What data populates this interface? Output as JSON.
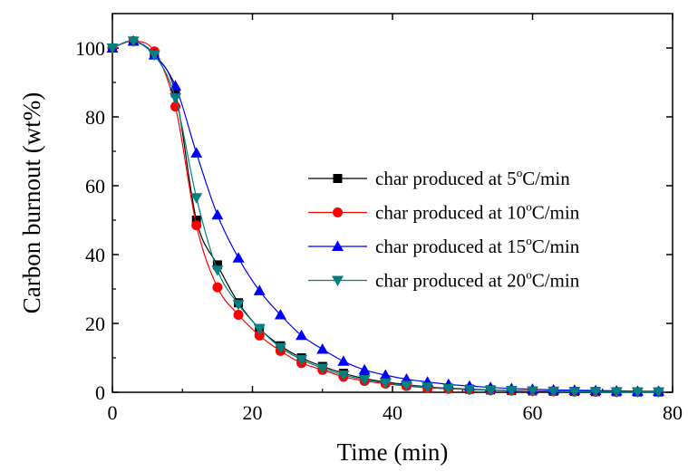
{
  "chart_data": {
    "type": "line",
    "xlabel": "Time (min)",
    "ylabel": "Carbon burnout (wt%)",
    "xlim": [
      0,
      80
    ],
    "ylim": [
      0,
      110
    ],
    "xticks": [
      0,
      20,
      40,
      60,
      80
    ],
    "yticks": [
      0,
      20,
      40,
      60,
      80,
      100
    ],
    "grid": false,
    "legend_position": "right-center",
    "series": [
      {
        "name": "char produced at 5°C/min",
        "label_prefix": "char produced at 5",
        "label_suffix": "C/min",
        "color": "#000000",
        "marker": "square",
        "x": [
          0,
          3,
          6,
          9,
          12,
          15,
          18,
          21,
          24,
          27,
          30,
          33,
          36,
          39,
          42,
          45,
          48,
          51,
          54,
          57,
          60,
          63,
          66,
          69,
          72,
          75,
          78
        ],
        "y": [
          100,
          102,
          98,
          87,
          50,
          37,
          26,
          18.5,
          13.5,
          10,
          7.5,
          5.5,
          4,
          3,
          2.2,
          1.6,
          1.2,
          0.9,
          0.7,
          0.5,
          0.4,
          0.3,
          0.25,
          0.2,
          0.15,
          0.1,
          0.1
        ]
      },
      {
        "name": "char produced at 10°C/min",
        "label_prefix": "char produced at 10",
        "label_suffix": "C/min",
        "color": "#ff0000",
        "marker": "circle",
        "x": [
          0,
          3,
          6,
          9,
          12,
          15,
          18,
          21,
          24,
          27,
          30,
          33,
          36,
          39,
          42,
          45,
          48,
          51,
          54,
          57,
          60,
          63,
          66,
          69,
          72,
          75,
          78
        ],
        "y": [
          100,
          102,
          99,
          83,
          48.5,
          30.5,
          22.5,
          16.5,
          12,
          8.5,
          6.5,
          4.5,
          3.3,
          2.5,
          1.8,
          1.3,
          1,
          0.8,
          0.6,
          0.5,
          0.4,
          0.3,
          0.2,
          0.15,
          0.1,
          0.1,
          0.1
        ]
      },
      {
        "name": "char produced at 15°C/min",
        "label_prefix": "char produced at 15",
        "label_suffix": "C/min",
        "color": "#0000ff",
        "marker": "triangle-up",
        "x": [
          0,
          3,
          6,
          9,
          12,
          15,
          18,
          21,
          24,
          27,
          30,
          33,
          36,
          39,
          42,
          45,
          48,
          51,
          54,
          57,
          60,
          63,
          66,
          69,
          72,
          75,
          78
        ],
        "y": [
          100,
          102,
          98,
          89,
          69.5,
          51.5,
          39,
          29.5,
          22.5,
          16.5,
          12.5,
          9,
          6.5,
          5,
          3.8,
          3,
          2.3,
          1.8,
          1.4,
          1.1,
          0.9,
          0.7,
          0.6,
          0.5,
          0.4,
          0.3,
          0.3
        ]
      },
      {
        "name": "char produced at 20°C/min",
        "label_prefix": "char produced at 20",
        "label_suffix": "C/min",
        "color": "#008080",
        "marker": "triangle-down",
        "x": [
          0,
          3,
          6,
          9,
          12,
          15,
          18,
          21,
          24,
          27,
          30,
          33,
          36,
          39,
          42,
          45,
          48,
          51,
          54,
          57,
          60,
          63,
          66,
          69,
          72,
          75,
          78
        ],
        "y": [
          100,
          102,
          98,
          85.5,
          56.5,
          35.5,
          25.5,
          18.5,
          13,
          9.5,
          7,
          5,
          3.7,
          2.7,
          2,
          1.5,
          1.1,
          0.8,
          0.6,
          0.5,
          0.4,
          0.3,
          0.2,
          0.15,
          0.1,
          0.1,
          0.1
        ]
      }
    ]
  }
}
